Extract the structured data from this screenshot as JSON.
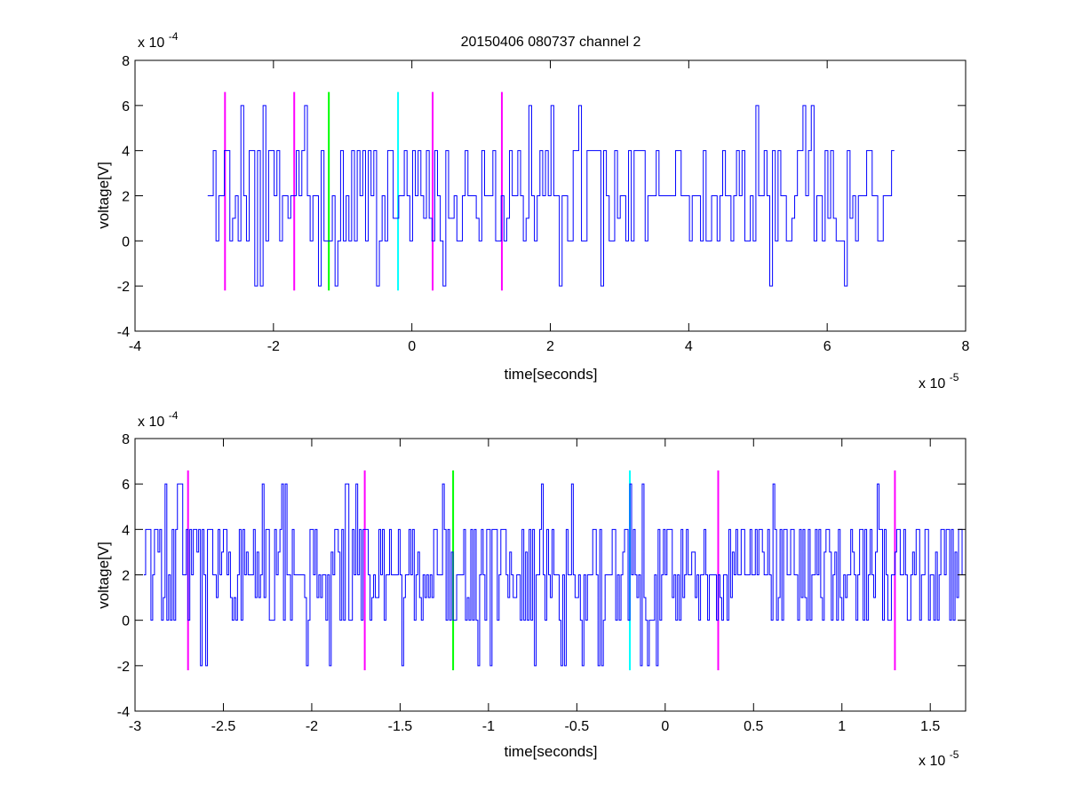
{
  "figure": {
    "title": "20150406 080737 channel 2"
  },
  "colors": {
    "signal": "#0000ff",
    "magenta": "#ff00ff",
    "green": "#00ff00",
    "cyan": "#00ffff",
    "axes": "#000000",
    "background": "#ffffff"
  },
  "chart_data": [
    {
      "type": "line",
      "title": "20150406 080737 channel 2",
      "xlabel": "time[seconds]",
      "ylabel": "voltage[V]",
      "x_multiplier_label": "x 10",
      "x_multiplier_exponent": "-5",
      "y_multiplier_label": "x 10",
      "y_multiplier_exponent": "-4",
      "x_scale": 1e-05,
      "y_scale": 0.0001,
      "xlim": [
        -4,
        8
      ],
      "ylim": [
        -4,
        8
      ],
      "xticks": [
        -4,
        -2,
        0,
        2,
        4,
        6,
        8
      ],
      "xtick_labels": [
        "-4",
        "-2",
        "0",
        "2",
        "4",
        "6",
        "8"
      ],
      "yticks": [
        -4,
        -2,
        0,
        2,
        4,
        6,
        8
      ],
      "ytick_labels": [
        "-4",
        "-2",
        "0",
        "2",
        "4",
        "6",
        "8"
      ],
      "grid": false,
      "series": [
        {
          "color": "#0000ff",
          "x_range": [
            -2.95,
            7.0
          ],
          "sample_step": 0.04,
          "levels": [
            -2,
            0,
            1,
            2,
            4,
            6
          ],
          "baseline": 2
        }
      ],
      "markers": [
        {
          "x": -2.7,
          "y_range": [
            -2.2,
            6.6
          ],
          "color": "#ff00ff"
        },
        {
          "x": -1.7,
          "y_range": [
            -2.2,
            6.6
          ],
          "color": "#ff00ff"
        },
        {
          "x": -1.2,
          "y_range": [
            -2.2,
            6.6
          ],
          "color": "#00ff00"
        },
        {
          "x": -0.2,
          "y_range": [
            -2.2,
            6.6
          ],
          "color": "#00ffff"
        },
        {
          "x": 0.3,
          "y_range": [
            -2.2,
            6.6
          ],
          "color": "#ff00ff"
        },
        {
          "x": 1.3,
          "y_range": [
            -2.2,
            6.6
          ],
          "color": "#ff00ff"
        }
      ]
    },
    {
      "type": "line",
      "title": "",
      "xlabel": "time[seconds]",
      "ylabel": "voltage[V]",
      "x_multiplier_label": "x 10",
      "x_multiplier_exponent": "-5",
      "y_multiplier_label": "x 10",
      "y_multiplier_exponent": "-4",
      "x_scale": 1e-05,
      "y_scale": 0.0001,
      "xlim": [
        -3.0,
        1.7
      ],
      "ylim": [
        -4,
        8
      ],
      "xticks": [
        -3,
        -2.5,
        -2,
        -1.5,
        -1,
        -0.5,
        0,
        0.5,
        1,
        1.5
      ],
      "xtick_labels": [
        "-3",
        "-2.5",
        "-2",
        "-1.5",
        "-1",
        "-0.5",
        "0",
        "0.5",
        "1",
        "1.5"
      ],
      "yticks": [
        -4,
        -2,
        0,
        2,
        4,
        6,
        8
      ],
      "ytick_labels": [
        "-4",
        "-2",
        "0",
        "2",
        "4",
        "6",
        "8"
      ],
      "grid": false,
      "series": [
        {
          "color": "#0000ff",
          "x_range": [
            -2.95,
            1.7
          ],
          "sample_step": 0.01,
          "levels": [
            -2,
            0,
            1,
            2,
            3,
            4,
            5,
            6
          ],
          "baseline": 2
        }
      ],
      "markers": [
        {
          "x": -2.7,
          "y_range": [
            -2.2,
            6.6
          ],
          "color": "#ff00ff"
        },
        {
          "x": -1.7,
          "y_range": [
            -2.2,
            6.6
          ],
          "color": "#ff00ff"
        },
        {
          "x": -1.2,
          "y_range": [
            -2.2,
            6.6
          ],
          "color": "#00ff00"
        },
        {
          "x": -0.2,
          "y_range": [
            -2.2,
            6.6
          ],
          "color": "#00ffff"
        },
        {
          "x": 0.3,
          "y_range": [
            -2.2,
            6.6
          ],
          "color": "#ff00ff"
        },
        {
          "x": 1.3,
          "y_range": [
            -2.2,
            6.6
          ],
          "color": "#ff00ff"
        }
      ]
    }
  ]
}
